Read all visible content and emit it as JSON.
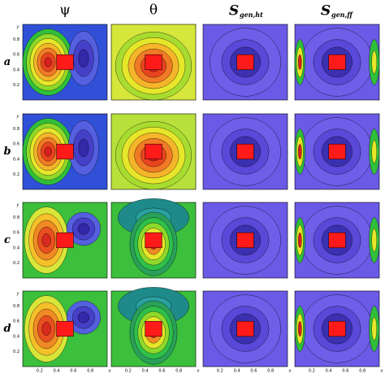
{
  "columns": [
    {
      "main": "ψ"
    },
    {
      "main": "θ"
    },
    {
      "main": "S",
      "sub": "gen,ht"
    },
    {
      "main": "S",
      "sub": "gen,ff"
    }
  ],
  "rows": [
    "a",
    "b",
    "c",
    "d"
  ],
  "axes": {
    "x_label": "x",
    "y_label": "y",
    "ticks": [
      "0.2",
      "0.4",
      "0.6",
      "0.8"
    ]
  }
}
